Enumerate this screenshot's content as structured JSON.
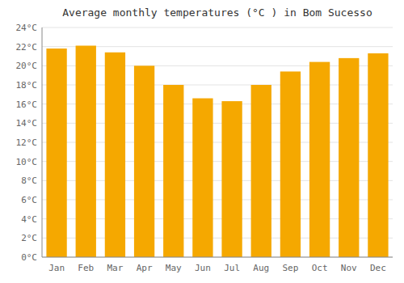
{
  "chart_data": {
    "type": "bar",
    "title": "Average monthly temperatures (°C ) in Bom Sucesso",
    "categories": [
      "Jan",
      "Feb",
      "Mar",
      "Apr",
      "May",
      "Jun",
      "Jul",
      "Aug",
      "Sep",
      "Oct",
      "Nov",
      "Dec"
    ],
    "values": [
      21.8,
      22.1,
      21.4,
      20.0,
      18.0,
      16.6,
      16.3,
      18.0,
      19.4,
      20.4,
      20.8,
      21.3
    ],
    "color": "#F5A800",
    "ylim": [
      0,
      24
    ],
    "yticks": [
      {
        "value": 0,
        "label": "0°C"
      },
      {
        "value": 2,
        "label": "2°C"
      },
      {
        "value": 4,
        "label": "4°C"
      },
      {
        "value": 6,
        "label": "6°C"
      },
      {
        "value": 8,
        "label": "8°C"
      },
      {
        "value": 10,
        "label": "10°C"
      },
      {
        "value": 12,
        "label": "12°C"
      },
      {
        "value": 14,
        "label": "14°C"
      },
      {
        "value": 16,
        "label": "16°C"
      },
      {
        "value": 18,
        "label": "18°C"
      },
      {
        "value": 20,
        "label": "20°C"
      },
      {
        "value": 22,
        "label": "22°C"
      },
      {
        "value": 24,
        "label": "24°C"
      }
    ],
    "grid": true
  }
}
